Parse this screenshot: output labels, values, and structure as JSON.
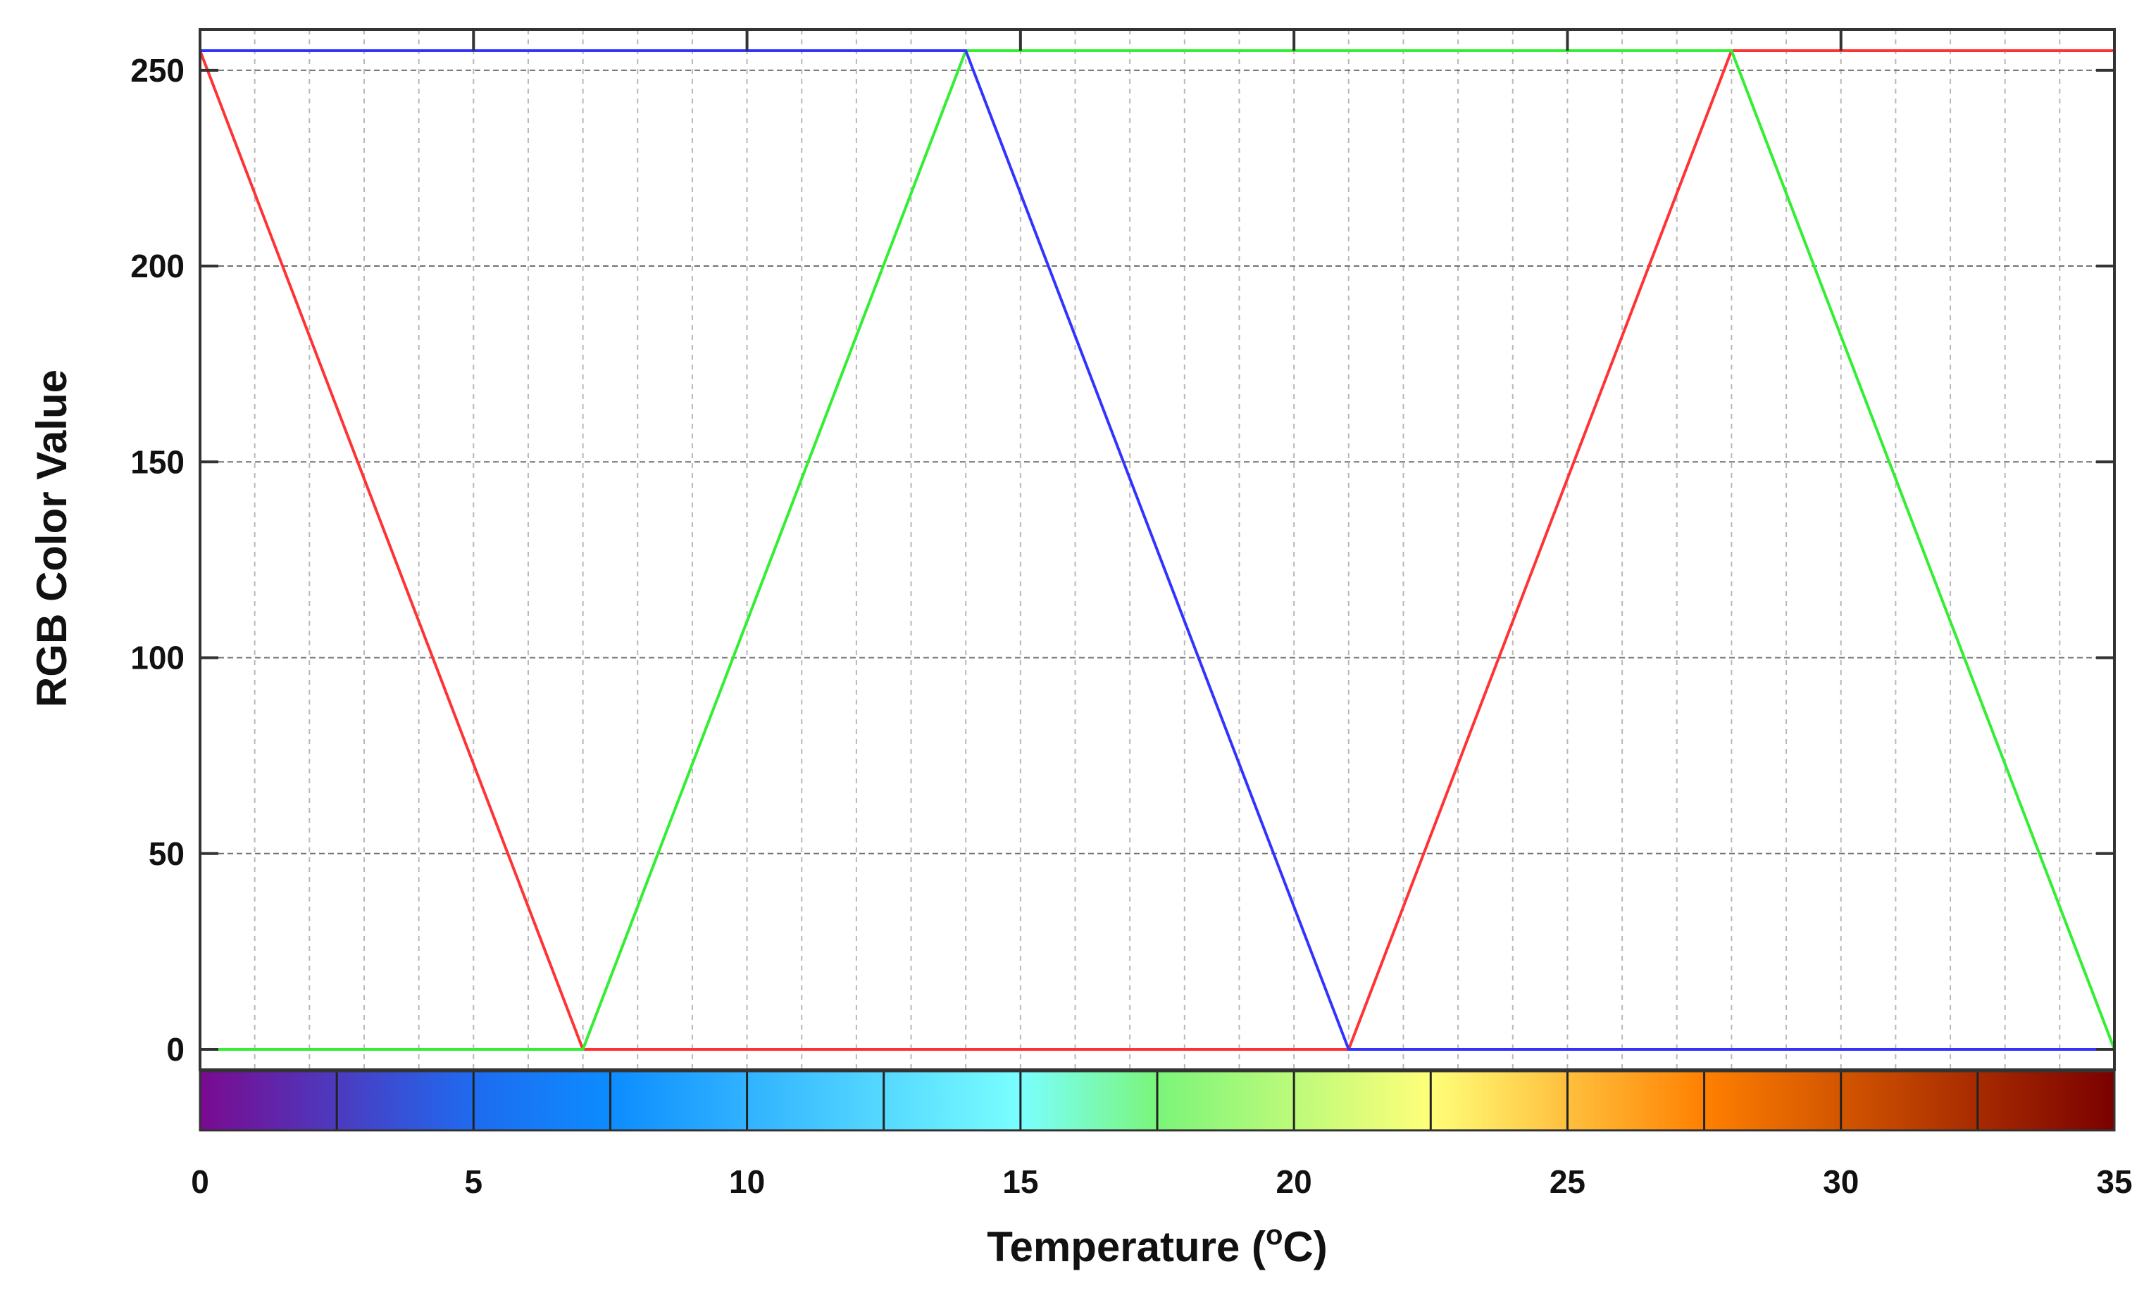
{
  "chart_data": {
    "type": "line",
    "title": "",
    "xlabel": {
      "main": "Temperature (",
      "superscript": "o",
      "unit": "C)"
    },
    "ylabel": "RGB Color Value",
    "xlim": [
      0,
      35
    ],
    "ylim": [
      0,
      255
    ],
    "x_ticks": [
      0,
      5,
      10,
      15,
      20,
      25,
      30,
      35
    ],
    "x_tick_labels": [
      "0",
      "5",
      "10",
      "15",
      "20",
      "25",
      "30",
      "35"
    ],
    "y_ticks": [
      0,
      50,
      100,
      150,
      200,
      250
    ],
    "y_tick_labels": [
      "0",
      "50",
      "100",
      "150",
      "200",
      "250"
    ],
    "grid": true,
    "legend": "none",
    "series": [
      {
        "color": "#ff3333",
        "x": [
          0,
          7,
          21,
          28,
          35
        ],
        "y": [
          255,
          0,
          0,
          255,
          255
        ]
      },
      {
        "color": "#33ee33",
        "x": [
          0,
          7,
          14,
          28,
          35
        ],
        "y": [
          0,
          0,
          255,
          255,
          0
        ]
      },
      {
        "color": "#3333ff",
        "x": [
          0,
          14,
          21,
          35
        ],
        "y": [
          255,
          255,
          0,
          0
        ]
      }
    ],
    "colorbar": {
      "range": [
        0,
        35
      ],
      "stops": [
        {
          "t": 0,
          "color": "#7a0a8f"
        },
        {
          "t": 5,
          "color": "#1e6bf0"
        },
        {
          "t": 7.5,
          "color": "#0c8cff"
        },
        {
          "t": 15,
          "color": "#7affff"
        },
        {
          "t": 17.5,
          "color": "#7af57a"
        },
        {
          "t": 22.5,
          "color": "#ffff7a"
        },
        {
          "t": 27.5,
          "color": "#ff8000"
        },
        {
          "t": 35,
          "color": "#7a0000"
        }
      ],
      "ticks": [
        2.5,
        5,
        7.5,
        10,
        12.5,
        15,
        17.5,
        20,
        22.5,
        25,
        27.5,
        30,
        32.5
      ]
    }
  }
}
